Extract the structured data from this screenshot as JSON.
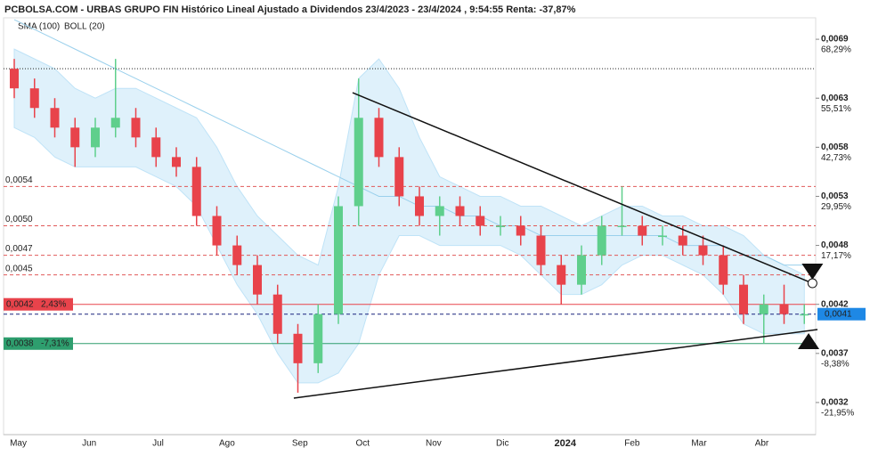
{
  "chart_data": {
    "type": "candlestick",
    "title": "PCBOLSA.COM - URBAS GRUPO FIN Histórico Lineal Ajustado a Dividendos 23/4/2023 - 23/4/2024 , 9:54:55 Renta: -37,87%",
    "indicators": [
      {
        "name": "SMA (100)",
        "color": "#9ad0ec"
      },
      {
        "name": "BOLL (20)",
        "color": "#bfe3f7"
      }
    ],
    "up_color": "#5fcf8c",
    "down_color": "#e8434b",
    "open": [
      0.0066,
      0.0064,
      0.0062,
      0.006,
      0.0058,
      0.006,
      0.0061,
      0.0059,
      0.0057,
      0.0056,
      0.0051,
      0.0048,
      0.0046,
      0.0043,
      0.0039,
      0.0036,
      0.0041,
      0.0052,
      0.0061,
      0.0057,
      0.0053,
      0.0051,
      0.0052,
      0.0051,
      0.005,
      0.005,
      0.0049,
      0.0046,
      0.0044,
      0.0047,
      0.005,
      0.005,
      0.0049,
      0.0049,
      0.0048,
      0.0047,
      0.0044,
      0.0041,
      0.0042,
      0.0041
    ],
    "high": [
      0.0067,
      0.0065,
      0.0063,
      0.0061,
      0.0061,
      0.0067,
      0.0062,
      0.006,
      0.0058,
      0.0057,
      0.0052,
      0.0049,
      0.0047,
      0.0044,
      0.004,
      0.0042,
      0.0053,
      0.0065,
      0.0062,
      0.0058,
      0.0054,
      0.0053,
      0.0053,
      0.0052,
      0.0051,
      0.0051,
      0.005,
      0.0047,
      0.0048,
      0.0051,
      0.0054,
      0.0051,
      0.005,
      0.005,
      0.0049,
      0.0048,
      0.0045,
      0.0043,
      0.0044,
      0.0042
    ],
    "low": [
      0.0063,
      0.0061,
      0.0059,
      0.0056,
      0.0057,
      0.0059,
      0.0058,
      0.0056,
      0.0055,
      0.005,
      0.0047,
      0.0045,
      0.0042,
      0.0038,
      0.0033,
      0.0035,
      0.004,
      0.005,
      0.0056,
      0.0052,
      0.005,
      0.0049,
      0.005,
      0.0049,
      0.0049,
      0.0048,
      0.0045,
      0.0042,
      0.0043,
      0.0046,
      0.0049,
      0.0048,
      0.0048,
      0.0047,
      0.0046,
      0.0043,
      0.004,
      0.0038,
      0.004,
      0.004
    ],
    "close": [
      0.0064,
      0.0062,
      0.006,
      0.0058,
      0.006,
      0.0061,
      0.0059,
      0.0057,
      0.0056,
      0.0051,
      0.0048,
      0.0046,
      0.0043,
      0.0039,
      0.0036,
      0.0041,
      0.0052,
      0.0061,
      0.0057,
      0.0053,
      0.0051,
      0.0052,
      0.0051,
      0.005,
      0.005,
      0.0049,
      0.0046,
      0.0044,
      0.0047,
      0.005,
      0.005,
      0.0049,
      0.0049,
      0.0048,
      0.0047,
      0.0044,
      0.0041,
      0.0042,
      0.0041,
      0.0041
    ],
    "boll_upper": [
      0.0068,
      0.0067,
      0.0066,
      0.0064,
      0.0063,
      0.0064,
      0.0064,
      0.0063,
      0.0062,
      0.0061,
      0.0058,
      0.0054,
      0.0051,
      0.0049,
      0.0047,
      0.0046,
      0.0054,
      0.0065,
      0.0067,
      0.0064,
      0.0059,
      0.0055,
      0.0054,
      0.0053,
      0.0053,
      0.0052,
      0.0052,
      0.0051,
      0.005,
      0.0051,
      0.0052,
      0.0052,
      0.0051,
      0.0051,
      0.005,
      0.005,
      0.0049,
      0.0047,
      0.0046,
      0.0045
    ],
    "boll_lower": [
      0.006,
      0.0059,
      0.0057,
      0.0056,
      0.0056,
      0.0056,
      0.0056,
      0.0055,
      0.0054,
      0.0052,
      0.0048,
      0.0044,
      0.0041,
      0.0037,
      0.0034,
      0.0034,
      0.0035,
      0.0038,
      0.0045,
      0.0049,
      0.0049,
      0.0048,
      0.0048,
      0.0048,
      0.0048,
      0.0047,
      0.0045,
      0.0043,
      0.0043,
      0.0044,
      0.0046,
      0.0047,
      0.0047,
      0.0046,
      0.0045,
      0.0043,
      0.004,
      0.0039,
      0.0039,
      0.0039
    ],
    "sma": [
      0.0071,
      0.007,
      0.0069,
      0.0068,
      0.0067,
      0.0066,
      0.0065,
      0.0064,
      0.0063,
      0.0062,
      0.0061,
      0.006,
      0.0059,
      0.0058,
      0.0057,
      0.0056,
      0.0055,
      0.0054,
      0.0053,
      0.0053,
      0.0052,
      0.0052,
      0.0051,
      0.0051,
      0.005,
      0.005,
      0.0049,
      0.0049,
      0.0049,
      0.0049,
      0.0049,
      0.0049,
      0.0049,
      0.0048,
      0.0048,
      0.0048,
      0.0047,
      0.0047,
      0.0046,
      0.0046
    ],
    "ylim": [
      0.0029,
      0.0073
    ],
    "yticks": [
      {
        "value": 0.0069,
        "label": "0,0069",
        "change": "68,29%"
      },
      {
        "value": 0.0063,
        "label": "0,0063",
        "change": "55,51%"
      },
      {
        "value": 0.0058,
        "label": "0,0058",
        "change": "42,73%"
      },
      {
        "value": 0.0053,
        "label": "0,0053",
        "change": "29,95%"
      },
      {
        "value": 0.0048,
        "label": "0,0048",
        "change": "17,17%"
      },
      {
        "value": 0.0042,
        "label": "0,0042"
      },
      {
        "value": 0.0037,
        "label": "0,0037",
        "change": "-8,38%"
      },
      {
        "value": 0.0032,
        "label": "0,0032",
        "change": "-21,95%"
      }
    ],
    "levels": [
      {
        "value": 0.0054,
        "label": "0,0054",
        "kind": "resistance"
      },
      {
        "value": 0.005,
        "label": "0,0050",
        "kind": "resistance"
      },
      {
        "value": 0.0047,
        "label": "0,0047",
        "kind": "resistance"
      },
      {
        "value": 0.0045,
        "label": "0,0045",
        "kind": "resistance"
      },
      {
        "value": 0.0042,
        "label": "0,0042",
        "change": "2,43%",
        "kind": "high",
        "color": "#e8434b"
      },
      {
        "value": 0.0038,
        "label": "0,0038",
        "change": "-7,31%",
        "kind": "low",
        "color": "#2e9e6e"
      },
      {
        "value": 0.0041,
        "label": "0,0041",
        "kind": "last",
        "color": "#1e88e5"
      },
      {
        "value": 0.0066,
        "kind": "max"
      }
    ],
    "trendlines": [
      {
        "x": [
          16.7,
          39.4
        ],
        "y": [
          0.006356,
          0.004415
        ]
      },
      {
        "x": [
          13.8,
          39.65
        ],
        "y": [
          0.003245,
          0.003943
        ]
      }
    ],
    "xlabels": [
      {
        "label": "May",
        "at": 0.2
      },
      {
        "label": "Jun",
        "at": 3.7
      },
      {
        "label": "Jul",
        "at": 7.1
      },
      {
        "label": "Ago",
        "at": 10.5
      },
      {
        "label": "Sep",
        "at": 14.1
      },
      {
        "label": "Oct",
        "at": 17.2
      },
      {
        "label": "Nov",
        "at": 20.7
      },
      {
        "label": "Dic",
        "at": 24.1
      },
      {
        "label": "2024",
        "at": 27.2,
        "bold": true
      },
      {
        "label": "Feb",
        "at": 30.5
      },
      {
        "label": "Mar",
        "at": 33.8
      },
      {
        "label": "Abr",
        "at": 36.9
      }
    ]
  }
}
